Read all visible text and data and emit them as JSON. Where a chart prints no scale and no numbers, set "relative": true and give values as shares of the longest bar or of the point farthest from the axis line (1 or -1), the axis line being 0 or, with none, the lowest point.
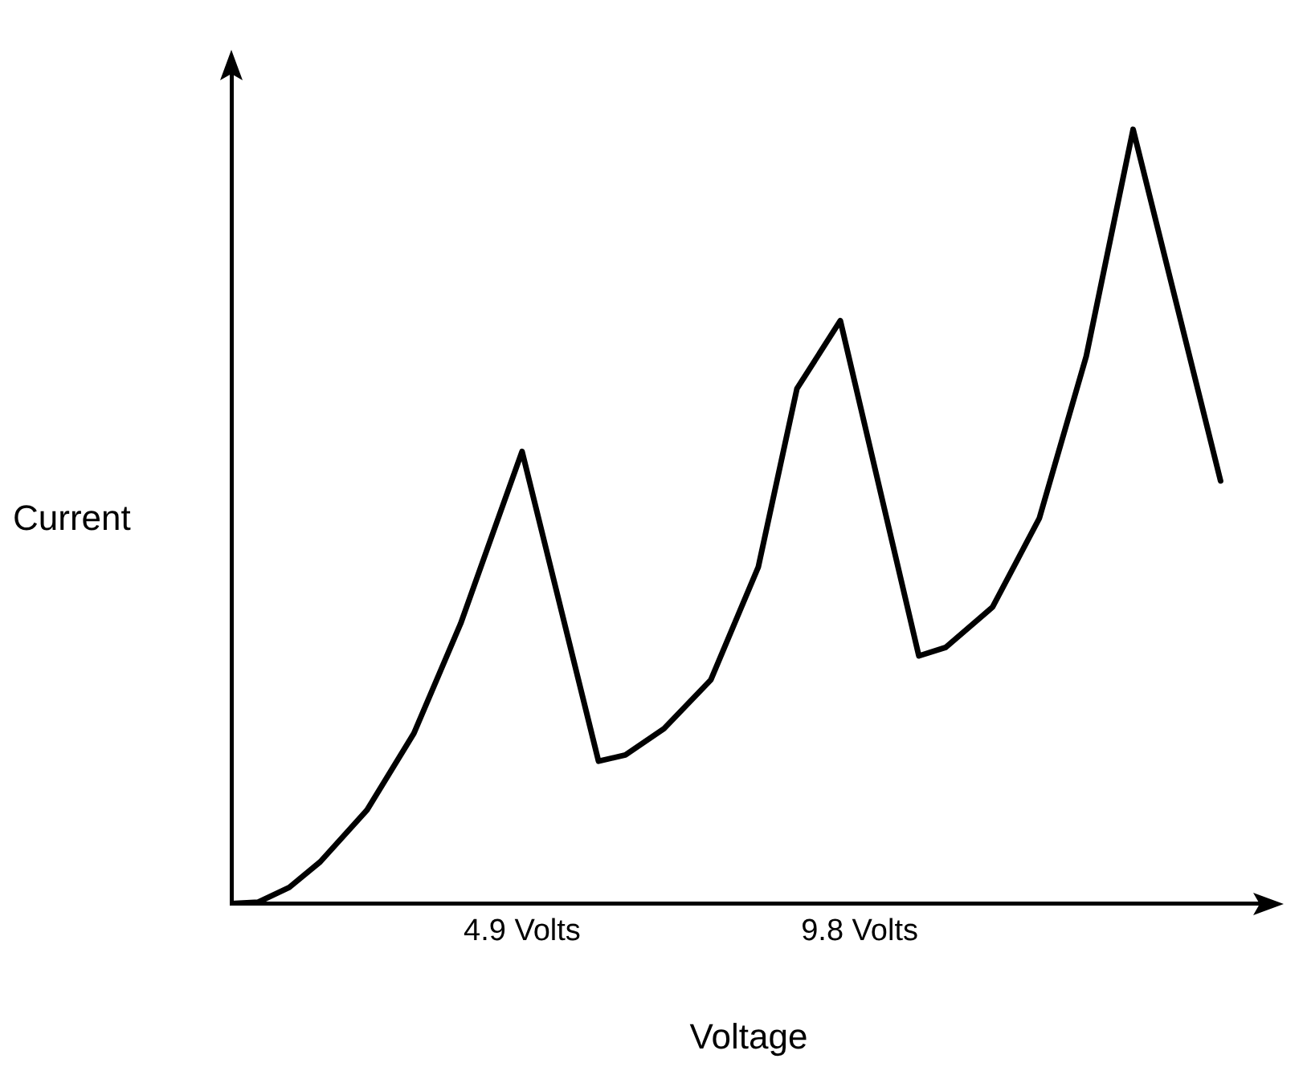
{
  "chart_data": {
    "type": "line",
    "xlabel": "Voltage",
    "ylabel": "Current",
    "relative": true,
    "xlim": [
      0.68,
      15.7
    ],
    "xticks": [
      {
        "value": 4.9,
        "label": "4.9 Volts"
      },
      {
        "value": 9.8,
        "label": "9.8 Volts"
      }
    ],
    "grid": false,
    "legend": false,
    "marker": "none",
    "line_style": "solid",
    "series": [
      {
        "color": "#000000",
        "x": [
          0.68,
          1.07,
          1.52,
          1.97,
          2.65,
          3.33,
          4.01,
          4.47,
          4.9,
          6.01,
          6.4,
          6.96,
          7.64,
          8.33,
          8.89,
          9.52,
          10.66,
          11.05,
          11.73,
          12.41,
          13.09,
          13.77,
          15.04
        ],
        "values": [
          0,
          0.002,
          0.021,
          0.054,
          0.121,
          0.22,
          0.362,
          0.477,
          0.584,
          0.184,
          0.192,
          0.226,
          0.289,
          0.435,
          0.665,
          0.753,
          0.32,
          0.331,
          0.383,
          0.498,
          0.707,
          1,
          0.546
        ]
      }
    ]
  }
}
